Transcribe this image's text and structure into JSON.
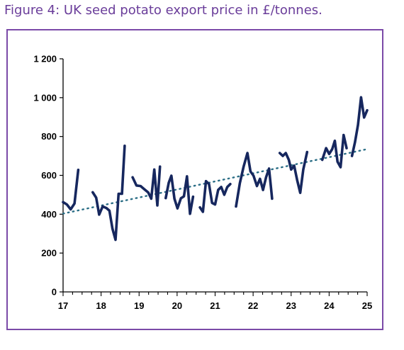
{
  "figure_title": "Figure 4: UK seed potato export price in £/tonnes.",
  "colors": {
    "title": "#6a3d9a",
    "frame": "#7b4aa8",
    "series": "#16275e",
    "trend": "#2b6e86"
  },
  "chart_data": {
    "type": "line",
    "title": "",
    "xlabel": "",
    "ylabel": "",
    "xlim": [
      17,
      25
    ],
    "ylim": [
      0,
      1200
    ],
    "x_ticks": [
      17,
      18,
      19,
      20,
      21,
      22,
      23,
      24,
      25
    ],
    "x_tick_labels": [
      "17",
      "18",
      "19",
      "20",
      "21",
      "22",
      "23",
      "24",
      "25"
    ],
    "y_ticks": [
      0,
      200,
      400,
      600,
      800,
      1000,
      1200
    ],
    "y_tick_labels": [
      "0",
      "200",
      "400",
      "600",
      "800",
      "1 000",
      "1 200"
    ],
    "grid": false,
    "legend": "none",
    "series": [
      {
        "segments": [
          [
            [
              17.0,
              462
            ],
            [
              17.1,
              450
            ],
            [
              17.2,
              425
            ],
            [
              17.3,
              455
            ],
            [
              17.4,
              628
            ]
          ],
          [
            [
              17.78,
              513
            ],
            [
              17.87,
              485
            ],
            [
              17.95,
              398
            ],
            [
              18.04,
              440
            ],
            [
              18.14,
              432
            ],
            [
              18.22,
              418
            ],
            [
              18.3,
              325
            ],
            [
              18.38,
              268
            ],
            [
              18.46,
              505
            ],
            [
              18.55,
              505
            ],
            [
              18.62,
              752
            ]
          ],
          [
            [
              18.83,
              590
            ],
            [
              18.93,
              548
            ],
            [
              19.04,
              545
            ],
            [
              19.14,
              528
            ],
            [
              19.24,
              512
            ],
            [
              19.32,
              480
            ],
            [
              19.4,
              630
            ],
            [
              19.48,
              445
            ],
            [
              19.55,
              645
            ]
          ],
          [
            [
              19.7,
              483
            ],
            [
              19.78,
              562
            ],
            [
              19.85,
              598
            ],
            [
              19.93,
              480
            ],
            [
              20.01,
              430
            ],
            [
              20.1,
              482
            ],
            [
              20.18,
              492
            ],
            [
              20.26,
              595
            ],
            [
              20.34,
              402
            ],
            [
              20.42,
              490
            ]
          ],
          [
            [
              20.6,
              435
            ],
            [
              20.68,
              412
            ],
            [
              20.76,
              570
            ],
            [
              20.84,
              555
            ],
            [
              20.92,
              458
            ],
            [
              21.0,
              450
            ],
            [
              21.08,
              525
            ],
            [
              21.16,
              540
            ],
            [
              21.24,
              500
            ],
            [
              21.32,
              540
            ],
            [
              21.4,
              555
            ]
          ],
          [
            [
              21.55,
              440
            ],
            [
              21.65,
              560
            ],
            [
              21.75,
              645
            ],
            [
              21.85,
              715
            ],
            [
              21.93,
              620
            ],
            [
              22.01,
              598
            ],
            [
              22.1,
              545
            ],
            [
              22.18,
              582
            ],
            [
              22.26,
              525
            ],
            [
              22.34,
              590
            ],
            [
              22.42,
              635
            ],
            [
              22.5,
              480
            ]
          ],
          [
            [
              22.7,
              715
            ],
            [
              22.78,
              700
            ],
            [
              22.86,
              715
            ],
            [
              22.94,
              680
            ],
            [
              23.0,
              630
            ],
            [
              23.08,
              650
            ],
            [
              23.16,
              575
            ],
            [
              23.24,
              510
            ],
            [
              23.32,
              630
            ],
            [
              23.42,
              720
            ]
          ],
          [
            [
              23.82,
              680
            ],
            [
              23.92,
              740
            ],
            [
              24.0,
              710
            ],
            [
              24.08,
              735
            ],
            [
              24.15,
              778
            ],
            [
              24.22,
              670
            ],
            [
              24.3,
              642
            ],
            [
              24.38,
              808
            ],
            [
              24.46,
              740
            ]
          ],
          [
            [
              24.6,
              700
            ],
            [
              24.68,
              770
            ],
            [
              24.76,
              860
            ],
            [
              24.84,
              1002
            ],
            [
              24.92,
              898
            ],
            [
              25.0,
              935
            ]
          ]
        ]
      }
    ],
    "trendline": {
      "style": "dotted",
      "points": [
        [
          17.0,
          403
        ],
        [
          25.0,
          735
        ]
      ]
    }
  }
}
